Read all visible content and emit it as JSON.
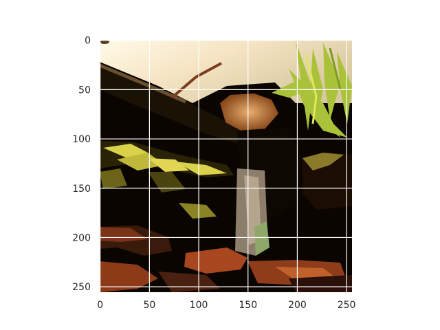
{
  "figure": {
    "background": "#ffffff",
    "description_kind": "image displayed on matplotlib axes (imshow) with white grid lines"
  },
  "image": {
    "subject": "terrarium interior with branches, rock and plants",
    "palette": {
      "shadow": "#0a0500",
      "wood": "#a8461f",
      "foliage": "#c8c93a",
      "light": "#fff4d6"
    }
  },
  "axes": {
    "x_ticks": [
      "0",
      "50",
      "100",
      "150",
      "200",
      "250"
    ],
    "y_ticks": [
      "0",
      "50",
      "100",
      "150",
      "200",
      "250"
    ],
    "grid": true,
    "grid_color": "#ffffff"
  },
  "chart_data": {
    "type": "heatmap",
    "title": "",
    "xlabel": "",
    "ylabel": "",
    "xlim": [
      0,
      255
    ],
    "ylim": [
      255,
      0
    ],
    "x_ticks": [
      0,
      50,
      100,
      150,
      200,
      250
    ],
    "y_ticks": [
      0,
      50,
      100,
      150,
      200,
      250
    ],
    "grid": true,
    "y_inverted": true,
    "content": "raster image"
  }
}
